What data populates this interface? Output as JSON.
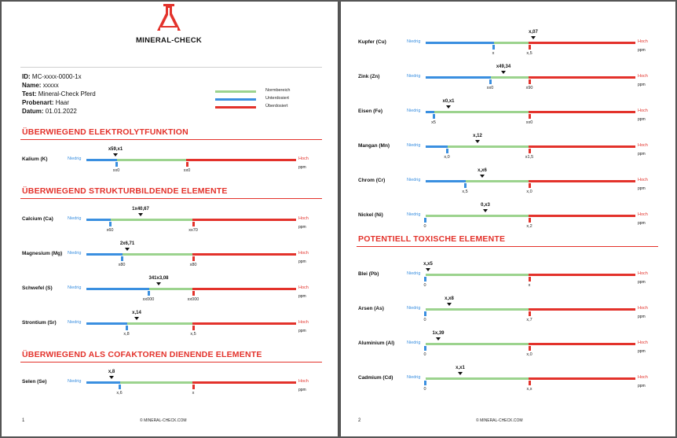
{
  "colors": {
    "accent": "#e3322b",
    "low": "#3a8fe0",
    "normal": "#9cd38e",
    "high": "#e3322b"
  },
  "brand": {
    "name": "MINERAL-CHECK",
    "icon": "flask-icon"
  },
  "info": [
    {
      "label": "ID:",
      "value": "MC-xxxx-0000-1x"
    },
    {
      "label": "Name:",
      "value": "xxxxx"
    },
    {
      "label": "Test:",
      "value": "Mineral-Check Pferd"
    },
    {
      "label": "Probenart:",
      "value": "Haar"
    },
    {
      "label": "Datum:",
      "value": "01.01.2022"
    }
  ],
  "legend": {
    "normal": "Normbereich",
    "under": "Unterdosiert",
    "over": "Überdosiert"
  },
  "scale": {
    "low": "Niedrig",
    "high": "Hoch",
    "unit": "ppm"
  },
  "sections": {
    "s1": "ÜBERWIEGEND ELEKTROLYTFUNKTION",
    "s2": "ÜBERWIEGEND STRUKTURBILDENDE ELEMENTE",
    "s3": "ÜBERWIEGEND ALS COFAKTOREN DIENENDE ELEMENTE",
    "s4": "POTENTIELL TOXISCHE ELEMENTE"
  },
  "elements": {
    "kalium": {
      "name": "Kalium (K)",
      "value": "x59,x1",
      "low": "xx0",
      "high": "xx0"
    },
    "calcium": {
      "name": "Calcium (Ca)",
      "value": "1x40,67",
      "low": "x60",
      "high": "xx70"
    },
    "magnesium": {
      "name": "Magnesium (Mg)",
      "value": "2x6,71",
      "low": "x80",
      "high": "x80"
    },
    "schwefel": {
      "name": "Schwefel (S)",
      "value": "341x3,08",
      "low": "xx000",
      "high": "xx000"
    },
    "strontium": {
      "name": "Strontium (Sr)",
      "value": "x,14",
      "low": "x,8",
      "high": "x,5"
    },
    "selen": {
      "name": "Selen (Se)",
      "value": "x,8",
      "low": "x,6",
      "high": "x"
    },
    "kupfer": {
      "name": "Kupfer (Cu)",
      "value": "x,07",
      "low": "x",
      "high": "x,5"
    },
    "zink": {
      "name": "Zink (Zn)",
      "value": "x49,34",
      "low": "xx0",
      "high": "x90"
    },
    "eisen": {
      "name": "Eisen (Fe)",
      "value": "x0,x1",
      "low": "x5",
      "high": "xx0"
    },
    "mangan": {
      "name": "Mangan (Mn)",
      "value": "x,12",
      "low": "x,0",
      "high": "x1,5"
    },
    "chrom": {
      "name": "Chrom (Cr)",
      "value": "x,x6",
      "low": "x,5",
      "high": "x,0"
    },
    "nickel": {
      "name": "Nickel (Ni)",
      "value": "0,x3",
      "low": "0",
      "high": "x,2"
    },
    "blei": {
      "name": "Blei (Pb)",
      "value": "x,x5",
      "low": "0",
      "high": "x"
    },
    "arsen": {
      "name": "Arsen (As)",
      "value": "x,x8",
      "low": "0",
      "high": "x,7"
    },
    "aluminium": {
      "name": "Aluminium (Al)",
      "value": "1x,39",
      "low": "0",
      "high": "x,0"
    },
    "cadmium": {
      "name": "Cadmium (Cd)",
      "value": "x,x1",
      "low": "0",
      "high": "x,x"
    }
  },
  "footer": {
    "page1": "1",
    "page2": "2",
    "site": "© MINERAL-CHECK.COM"
  }
}
